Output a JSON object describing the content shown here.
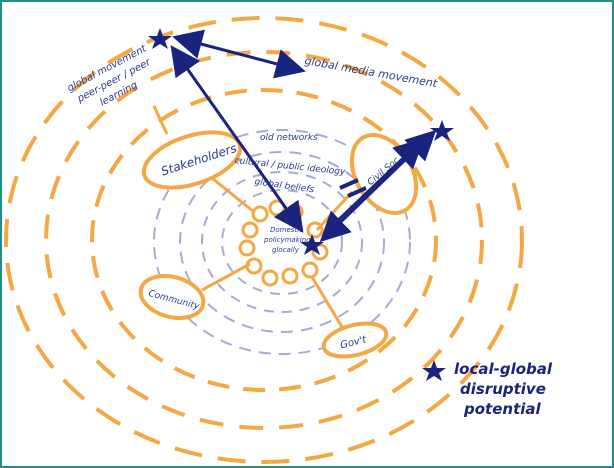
{
  "labels": {
    "global_movement": [
      "global movement",
      "peer-peer / peer",
      "learning"
    ],
    "global_media": "global media movement",
    "old_networks": "old networks",
    "cultural_norms": "cultural / public ideology",
    "global_beliefs": "global beliefs",
    "domestic": [
      "Domestic",
      "policymaking",
      "glocally"
    ],
    "stakeholder": "Stakeholders",
    "civil": "Civil Soc.",
    "community": "Community",
    "govt": "Gov't",
    "legend": [
      "local-global",
      "disruptive",
      "potential"
    ]
  },
  "colors": {
    "orange": "#f5a744",
    "navy": "#1a237e",
    "lavender": "#a9a9d6",
    "frame": "#1f8f8a"
  },
  "icons": [
    "star-icon",
    "arrow-icon"
  ]
}
